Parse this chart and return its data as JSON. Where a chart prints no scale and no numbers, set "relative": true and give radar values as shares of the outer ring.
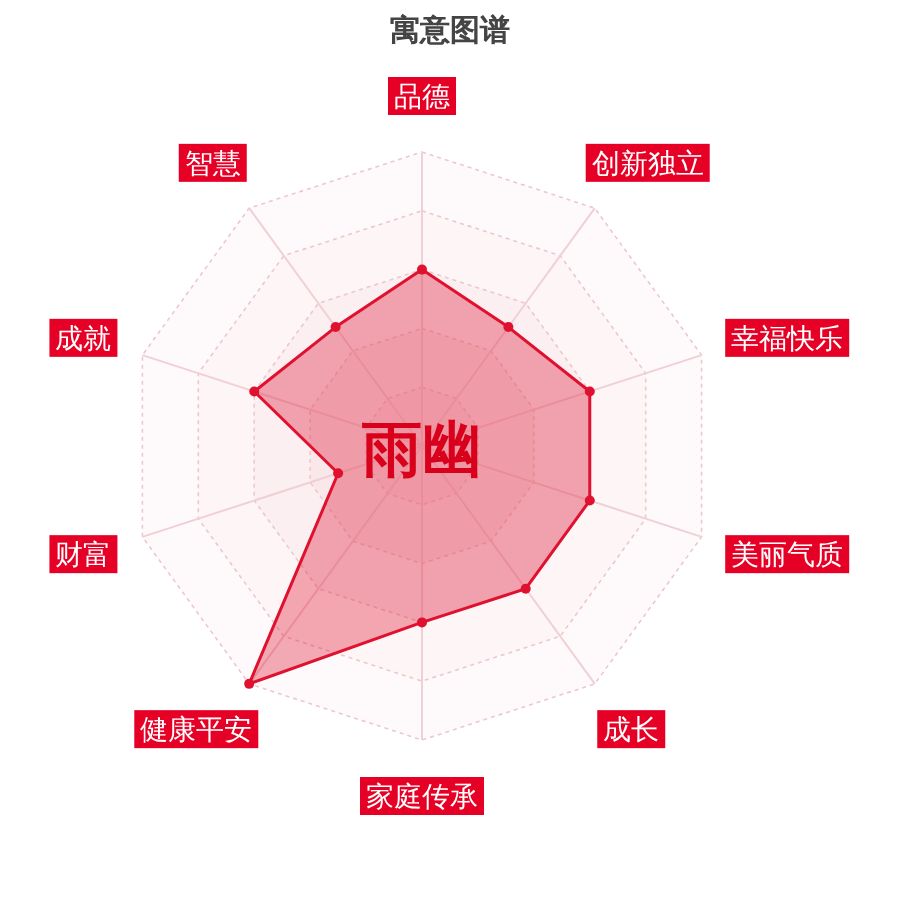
{
  "chart_data": {
    "type": "radar",
    "title": "寓意图谱",
    "categories": [
      "品德",
      "创新独立",
      "幸福快乐",
      "美丽气质",
      "成长",
      "家庭传承",
      "健康平安",
      "财富",
      "成就",
      "智慧"
    ],
    "relative": true,
    "grid": true,
    "marker": "circle",
    "annotations": [
      "雨幽"
    ],
    "series": [
      {
        "color": "#e0102f",
        "values": [
          0.6,
          0.5,
          0.6,
          0.6,
          0.6,
          0.6,
          1.0,
          0.3,
          0.6,
          0.5
        ]
      }
    ]
  }
}
